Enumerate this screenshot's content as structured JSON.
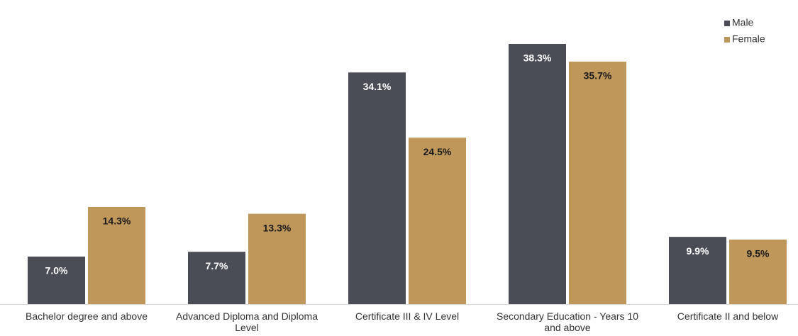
{
  "chart_data": {
    "type": "bar",
    "categories": [
      "Bachelor degree and above",
      "Advanced Diploma and Diploma Level",
      "Certificate III & IV Level",
      "Secondary Education - Years 10 and above",
      "Certificate II and below"
    ],
    "series": [
      {
        "name": "Male",
        "color": "#4a4d55",
        "values": [
          7.0,
          7.7,
          34.1,
          38.3,
          9.9
        ],
        "value_labels": [
          "7.0%",
          "7.7%",
          "34.1%",
          "38.3%",
          "9.9%"
        ]
      },
      {
        "name": "Female",
        "color": "#c0975a",
        "values": [
          14.3,
          13.3,
          24.5,
          35.7,
          9.5
        ],
        "value_labels": [
          "14.3%",
          "13.3%",
          "24.5%",
          "35.7%",
          "9.5%"
        ]
      }
    ],
    "legend": "top-right"
  }
}
